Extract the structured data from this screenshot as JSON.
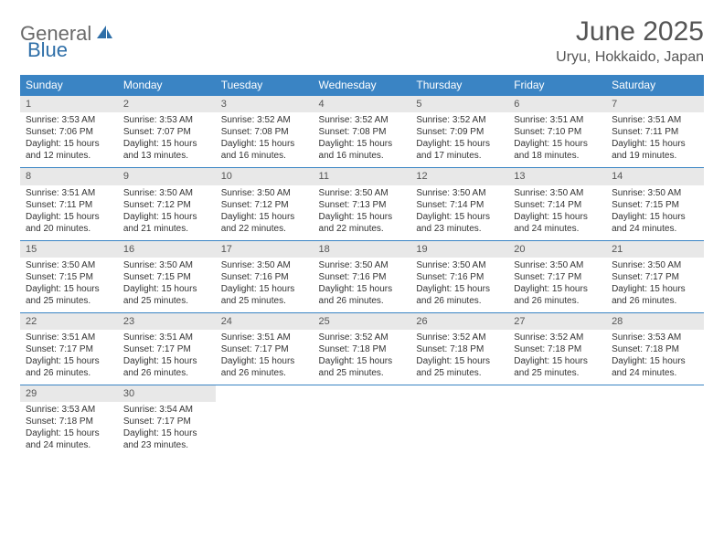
{
  "logo": {
    "part1": "General",
    "part2": "Blue"
  },
  "title": "June 2025",
  "location": "Uryu, Hokkaido, Japan",
  "colors": {
    "header_bg": "#3a84c4",
    "header_text": "#ffffff",
    "daynum_bg": "#e8e8e8",
    "border": "#3a84c4",
    "logo_gray": "#6a6a6a",
    "logo_blue": "#2f6fa8",
    "title_color": "#555555"
  },
  "day_headers": [
    "Sunday",
    "Monday",
    "Tuesday",
    "Wednesday",
    "Thursday",
    "Friday",
    "Saturday"
  ],
  "weeks": [
    [
      {
        "n": "1",
        "sr": "Sunrise: 3:53 AM",
        "ss": "Sunset: 7:06 PM",
        "d1": "Daylight: 15 hours",
        "d2": "and 12 minutes."
      },
      {
        "n": "2",
        "sr": "Sunrise: 3:53 AM",
        "ss": "Sunset: 7:07 PM",
        "d1": "Daylight: 15 hours",
        "d2": "and 13 minutes."
      },
      {
        "n": "3",
        "sr": "Sunrise: 3:52 AM",
        "ss": "Sunset: 7:08 PM",
        "d1": "Daylight: 15 hours",
        "d2": "and 16 minutes."
      },
      {
        "n": "4",
        "sr": "Sunrise: 3:52 AM",
        "ss": "Sunset: 7:08 PM",
        "d1": "Daylight: 15 hours",
        "d2": "and 16 minutes."
      },
      {
        "n": "5",
        "sr": "Sunrise: 3:52 AM",
        "ss": "Sunset: 7:09 PM",
        "d1": "Daylight: 15 hours",
        "d2": "and 17 minutes."
      },
      {
        "n": "6",
        "sr": "Sunrise: 3:51 AM",
        "ss": "Sunset: 7:10 PM",
        "d1": "Daylight: 15 hours",
        "d2": "and 18 minutes."
      },
      {
        "n": "7",
        "sr": "Sunrise: 3:51 AM",
        "ss": "Sunset: 7:11 PM",
        "d1": "Daylight: 15 hours",
        "d2": "and 19 minutes."
      }
    ],
    [
      {
        "n": "8",
        "sr": "Sunrise: 3:51 AM",
        "ss": "Sunset: 7:11 PM",
        "d1": "Daylight: 15 hours",
        "d2": "and 20 minutes."
      },
      {
        "n": "9",
        "sr": "Sunrise: 3:50 AM",
        "ss": "Sunset: 7:12 PM",
        "d1": "Daylight: 15 hours",
        "d2": "and 21 minutes."
      },
      {
        "n": "10",
        "sr": "Sunrise: 3:50 AM",
        "ss": "Sunset: 7:12 PM",
        "d1": "Daylight: 15 hours",
        "d2": "and 22 minutes."
      },
      {
        "n": "11",
        "sr": "Sunrise: 3:50 AM",
        "ss": "Sunset: 7:13 PM",
        "d1": "Daylight: 15 hours",
        "d2": "and 22 minutes."
      },
      {
        "n": "12",
        "sr": "Sunrise: 3:50 AM",
        "ss": "Sunset: 7:14 PM",
        "d1": "Daylight: 15 hours",
        "d2": "and 23 minutes."
      },
      {
        "n": "13",
        "sr": "Sunrise: 3:50 AM",
        "ss": "Sunset: 7:14 PM",
        "d1": "Daylight: 15 hours",
        "d2": "and 24 minutes."
      },
      {
        "n": "14",
        "sr": "Sunrise: 3:50 AM",
        "ss": "Sunset: 7:15 PM",
        "d1": "Daylight: 15 hours",
        "d2": "and 24 minutes."
      }
    ],
    [
      {
        "n": "15",
        "sr": "Sunrise: 3:50 AM",
        "ss": "Sunset: 7:15 PM",
        "d1": "Daylight: 15 hours",
        "d2": "and 25 minutes."
      },
      {
        "n": "16",
        "sr": "Sunrise: 3:50 AM",
        "ss": "Sunset: 7:15 PM",
        "d1": "Daylight: 15 hours",
        "d2": "and 25 minutes."
      },
      {
        "n": "17",
        "sr": "Sunrise: 3:50 AM",
        "ss": "Sunset: 7:16 PM",
        "d1": "Daylight: 15 hours",
        "d2": "and 25 minutes."
      },
      {
        "n": "18",
        "sr": "Sunrise: 3:50 AM",
        "ss": "Sunset: 7:16 PM",
        "d1": "Daylight: 15 hours",
        "d2": "and 26 minutes."
      },
      {
        "n": "19",
        "sr": "Sunrise: 3:50 AM",
        "ss": "Sunset: 7:16 PM",
        "d1": "Daylight: 15 hours",
        "d2": "and 26 minutes."
      },
      {
        "n": "20",
        "sr": "Sunrise: 3:50 AM",
        "ss": "Sunset: 7:17 PM",
        "d1": "Daylight: 15 hours",
        "d2": "and 26 minutes."
      },
      {
        "n": "21",
        "sr": "Sunrise: 3:50 AM",
        "ss": "Sunset: 7:17 PM",
        "d1": "Daylight: 15 hours",
        "d2": "and 26 minutes."
      }
    ],
    [
      {
        "n": "22",
        "sr": "Sunrise: 3:51 AM",
        "ss": "Sunset: 7:17 PM",
        "d1": "Daylight: 15 hours",
        "d2": "and 26 minutes."
      },
      {
        "n": "23",
        "sr": "Sunrise: 3:51 AM",
        "ss": "Sunset: 7:17 PM",
        "d1": "Daylight: 15 hours",
        "d2": "and 26 minutes."
      },
      {
        "n": "24",
        "sr": "Sunrise: 3:51 AM",
        "ss": "Sunset: 7:17 PM",
        "d1": "Daylight: 15 hours",
        "d2": "and 26 minutes."
      },
      {
        "n": "25",
        "sr": "Sunrise: 3:52 AM",
        "ss": "Sunset: 7:18 PM",
        "d1": "Daylight: 15 hours",
        "d2": "and 25 minutes."
      },
      {
        "n": "26",
        "sr": "Sunrise: 3:52 AM",
        "ss": "Sunset: 7:18 PM",
        "d1": "Daylight: 15 hours",
        "d2": "and 25 minutes."
      },
      {
        "n": "27",
        "sr": "Sunrise: 3:52 AM",
        "ss": "Sunset: 7:18 PM",
        "d1": "Daylight: 15 hours",
        "d2": "and 25 minutes."
      },
      {
        "n": "28",
        "sr": "Sunrise: 3:53 AM",
        "ss": "Sunset: 7:18 PM",
        "d1": "Daylight: 15 hours",
        "d2": "and 24 minutes."
      }
    ],
    [
      {
        "n": "29",
        "sr": "Sunrise: 3:53 AM",
        "ss": "Sunset: 7:18 PM",
        "d1": "Daylight: 15 hours",
        "d2": "and 24 minutes."
      },
      {
        "n": "30",
        "sr": "Sunrise: 3:54 AM",
        "ss": "Sunset: 7:17 PM",
        "d1": "Daylight: 15 hours",
        "d2": "and 23 minutes."
      },
      null,
      null,
      null,
      null,
      null
    ]
  ]
}
